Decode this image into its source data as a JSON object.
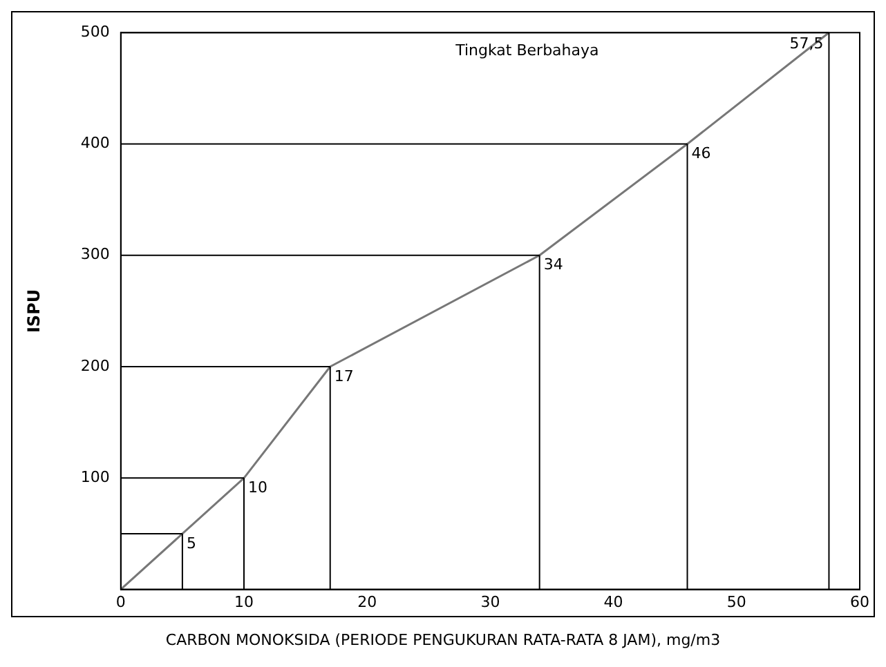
{
  "chart_data": {
    "type": "line",
    "xlabel": "CARBON MONOKSIDA (PERIODE PENGUKURAN RATA-RATA 8 JAM), mg/m3",
    "ylabel": "ISPU",
    "x": [
      0,
      5,
      10,
      17,
      34,
      46,
      57.5
    ],
    "series": [
      {
        "color": "#777777",
        "values": [
          0,
          50,
          100,
          200,
          300,
          400,
          500
        ]
      }
    ],
    "xlim": [
      0,
      60
    ],
    "xticks": [
      0,
      10,
      20,
      30,
      40,
      50,
      60
    ],
    "ylim": [
      0,
      500
    ],
    "yticks": [
      100,
      200,
      300,
      400,
      500
    ],
    "legend": false,
    "marker": "none",
    "line_style": "solid",
    "annotations": [
      "Tingkat Berbahaya",
      {
        "text": "5",
        "x": 5,
        "y": 50
      },
      {
        "text": "10",
        "x": 10,
        "y": 100
      },
      {
        "text": "17",
        "x": 17,
        "y": 200
      },
      {
        "text": "34",
        "x": 34,
        "y": 300
      },
      {
        "text": "46",
        "x": 46,
        "y": 400
      },
      {
        "text": "57,5",
        "x": 57.5,
        "y": 500
      }
    ]
  }
}
